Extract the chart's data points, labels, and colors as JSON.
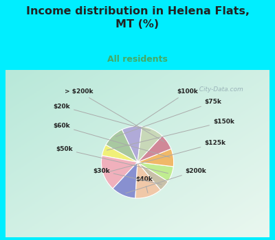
{
  "title": "Income distribution in Helena Flats,\nMT (%)",
  "subtitle": "All residents",
  "labels": [
    "$100k",
    "$75k",
    "$150k",
    "$125k",
    "$200k",
    "$40k",
    "$30k",
    "$50k",
    "$60k",
    "> $200k",
    "$20k"
  ],
  "values": [
    9,
    10,
    5,
    16,
    11,
    12,
    5,
    7,
    8,
    7,
    10
  ],
  "colors": [
    "#b0aad8",
    "#a8c8a0",
    "#f0f078",
    "#f0b0bc",
    "#8890d0",
    "#f0c8a8",
    "#c8c0a8",
    "#c0ec90",
    "#f0b868",
    "#d08898",
    "#c8d8b8"
  ],
  "bg_cyan": "#00eeff",
  "chart_bg_left": "#b8e8d8",
  "chart_bg_right": "#e8f8f0",
  "title_color": "#222222",
  "subtitle_color": "#44aa66",
  "label_color": "#222222",
  "line_color": "#aaaaaa",
  "startangle": 83,
  "watermark": "  City-Data.com"
}
